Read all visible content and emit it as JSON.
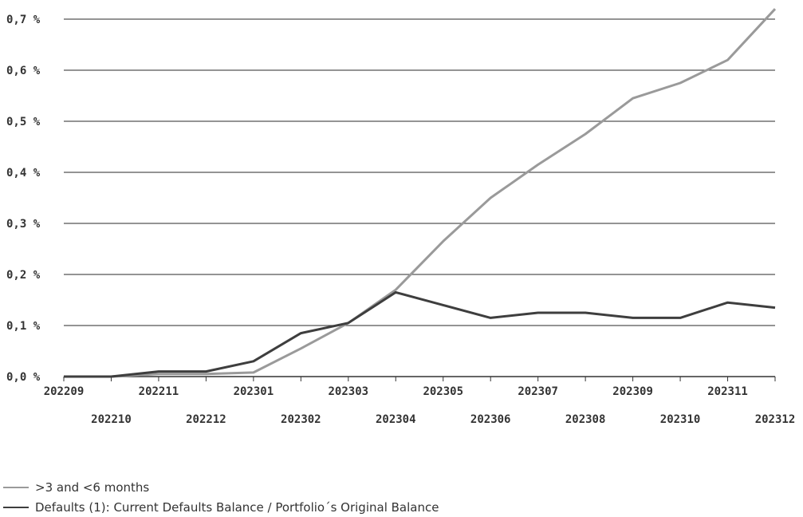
{
  "chart_data": {
    "type": "line",
    "title": "",
    "xlabel": "",
    "ylabel": "",
    "categories": [
      "202209",
      "202210",
      "202211",
      "202212",
      "202301",
      "202302",
      "202303",
      "202304",
      "202305",
      "202306",
      "202307",
      "202308",
      "202309",
      "202310",
      "202311",
      "202312"
    ],
    "yticks": [
      "0,0 %",
      "0,1 %",
      "0,2 %",
      "0,3 %",
      "0,4 %",
      "0,5 %",
      "0,6 %",
      "0,7 %"
    ],
    "ylim": [
      0,
      0.7
    ],
    "grid": true,
    "legend_position": "bottom-left",
    "series": [
      {
        "name": ">3 and <6 months",
        "color": "#9a9a9a",
        "values": [
          0.0,
          0.0,
          0.005,
          0.005,
          0.008,
          0.055,
          0.105,
          0.17,
          0.265,
          0.35,
          0.415,
          0.475,
          0.545,
          0.575,
          0.62,
          0.72
        ]
      },
      {
        "name": "Defaults (1): Current Defaults Balance / Portfolio´s Original Balance",
        "color": "#3e3e3e",
        "values": [
          0.0,
          0.0,
          0.01,
          0.01,
          0.03,
          0.085,
          0.105,
          0.165,
          0.14,
          0.115,
          0.125,
          0.125,
          0.115,
          0.115,
          0.145,
          0.135
        ]
      }
    ]
  }
}
